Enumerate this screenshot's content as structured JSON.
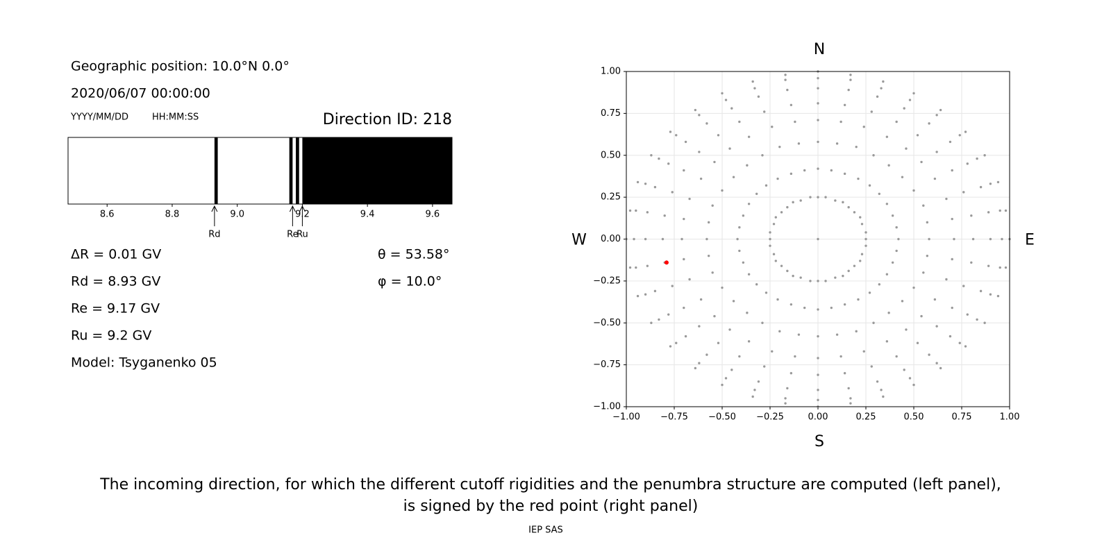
{
  "header": {
    "position": "Geographic position: 10.0°N 0.0°",
    "datetime": "2020/06/07 00:00:00",
    "date_format": "YYYY/MM/DD",
    "time_format": "HH:MM:SS"
  },
  "results": {
    "lines": [
      "ΔR = 0.01 GV",
      "Rd = 8.93 GV",
      "Re = 9.17 GV",
      "Ru = 9.2 GV",
      "Model: Tsyganenko 05"
    ],
    "angles": [
      "θ = 53.58°",
      "φ = 10.0°"
    ]
  },
  "chart_data": [
    {
      "type": "penumbra",
      "title": "Direction ID: 218",
      "xlim": [
        8.48,
        9.66
      ],
      "xticks": [
        8.6,
        8.8,
        {
          "value": 9,
          "label": "9.0"
        },
        9.2,
        9.4,
        9.6
      ],
      "color": "#000000",
      "bands": [
        [
          8.93,
          8.94
        ],
        [
          9.16,
          9.17
        ],
        [
          9.18,
          9.19
        ],
        [
          9.2,
          9.66
        ]
      ],
      "markers": [
        {
          "label": "Rd",
          "value": 8.93
        },
        {
          "label": "Re",
          "value": 9.17
        },
        {
          "label": "Ru",
          "value": 9.2
        }
      ]
    },
    {
      "type": "scatter",
      "xlim": [
        -1,
        1
      ],
      "ylim": [
        -1,
        1
      ],
      "grid": true,
      "xticks": [
        {
          "value": -1,
          "label": "−1.00"
        },
        {
          "value": -0.75,
          "label": "−0.75"
        },
        {
          "value": -0.5,
          "label": "−0.50"
        },
        {
          "value": -0.25,
          "label": "−0.25"
        },
        {
          "value": 0,
          "label": "0.00"
        },
        {
          "value": 0.25,
          "label": "0.25"
        },
        {
          "value": 0.5,
          "label": "0.50"
        },
        {
          "value": 0.75,
          "label": "0.75"
        },
        {
          "value": 1,
          "label": "1.00"
        }
      ],
      "yticks": [
        {
          "value": -1,
          "label": "−1.00"
        },
        {
          "value": -0.75,
          "label": "−0.75"
        },
        {
          "value": -0.5,
          "label": "−0.50"
        },
        {
          "value": -0.25,
          "label": "−0.25"
        },
        {
          "value": 0,
          "label": "0.00"
        },
        {
          "value": 0.25,
          "label": "0.25"
        },
        {
          "value": 0.5,
          "label": "0.50"
        },
        {
          "value": 0.75,
          "label": "0.75"
        },
        {
          "value": 1,
          "label": "1.00"
        }
      ],
      "directions": {
        "top": "N",
        "bottom": "S",
        "left": "W",
        "right": "E"
      },
      "series": [
        {
          "color": "#999999",
          "x": [
            0,
            0.25,
            0.25,
            0.23,
            0.22,
            0.19,
            0.16,
            0.13,
            0.09,
            0.04,
            0,
            -0.04,
            -0.09,
            -0.13,
            -0.16,
            -0.19,
            -0.22,
            -0.23,
            -0.25,
            -0.25,
            -0.25,
            -0.23,
            -0.22,
            -0.19,
            -0.16,
            -0.13,
            -0.09,
            -0.04,
            0,
            0.04,
            0.09,
            0.13,
            0.16,
            0.19,
            0.22,
            0.23,
            0.25,
            0.42,
            0.41,
            0.39,
            0.36,
            0.32,
            0.27,
            0.21,
            0.14,
            0.07,
            0,
            -0.07,
            -0.14,
            -0.21,
            -0.27,
            -0.32,
            -0.36,
            -0.39,
            -0.41,
            -0.42,
            -0.41,
            -0.39,
            -0.36,
            -0.32,
            -0.27,
            -0.21,
            -0.14,
            -0.07,
            0,
            0.07,
            0.14,
            0.21,
            0.27,
            0.32,
            0.36,
            0.39,
            0.41,
            0.58,
            0.57,
            0.55,
            0.5,
            0.44,
            0.37,
            0.29,
            0.2,
            0.1,
            0,
            -0.1,
            -0.2,
            -0.29,
            -0.37,
            -0.44,
            -0.5,
            -0.55,
            -0.57,
            -0.58,
            -0.57,
            -0.55,
            -0.5,
            -0.44,
            -0.37,
            -0.29,
            -0.2,
            -0.1,
            0,
            0.1,
            0.2,
            0.29,
            0.37,
            0.44,
            0.5,
            0.55,
            0.57,
            0.71,
            0.7,
            0.67,
            0.61,
            0.54,
            0.46,
            0.36,
            0.24,
            0.12,
            0,
            -0.12,
            -0.24,
            -0.36,
            -0.46,
            -0.54,
            -0.61,
            -0.67,
            -0.7,
            -0.71,
            -0.7,
            -0.67,
            -0.61,
            -0.54,
            -0.46,
            -0.36,
            -0.24,
            -0.12,
            0,
            0.12,
            0.24,
            0.36,
            0.46,
            0.54,
            0.61,
            0.67,
            0.7,
            0.81,
            0.8,
            0.76,
            0.7,
            0.62,
            0.52,
            0.41,
            0.28,
            0.14,
            0,
            -0.14,
            -0.28,
            -0.41,
            -0.52,
            -0.62,
            -0.7,
            -0.76,
            -0.8,
            -0.81,
            -0.8,
            -0.76,
            -0.7,
            -0.62,
            -0.52,
            -0.41,
            -0.28,
            -0.14,
            0,
            0.14,
            0.28,
            0.41,
            0.52,
            0.62,
            0.7,
            0.76,
            0.8,
            0.9,
            0.89,
            0.85,
            0.78,
            0.69,
            0.58,
            0.45,
            0.31,
            0.16,
            0,
            -0.16,
            -0.31,
            -0.45,
            -0.58,
            -0.69,
            -0.78,
            -0.85,
            -0.89,
            -0.9,
            -0.89,
            -0.85,
            -0.78,
            -0.69,
            -0.58,
            -0.45,
            -0.31,
            -0.16,
            0,
            0.16,
            0.31,
            0.45,
            0.58,
            0.69,
            0.78,
            0.85,
            0.89,
            0.96,
            0.95,
            0.9,
            0.83,
            0.74,
            0.62,
            0.48,
            0.33,
            0.17,
            0,
            -0.17,
            -0.33,
            -0.48,
            -0.62,
            -0.74,
            -0.83,
            -0.9,
            -0.95,
            -0.96,
            -0.95,
            -0.9,
            -0.83,
            -0.74,
            -0.62,
            -0.48,
            -0.33,
            -0.17,
            0,
            0.17,
            0.33,
            0.48,
            0.62,
            0.74,
            0.83,
            0.9,
            0.95,
            1,
            0.98,
            0.94,
            0.87,
            0.77,
            0.64,
            0.5,
            0.34,
            0.17,
            0,
            -0.17,
            -0.34,
            -0.5,
            -0.64,
            -0.77,
            -0.87,
            -0.94,
            -0.98,
            -1,
            -0.98,
            -0.94,
            -0.87,
            -0.77,
            -0.64,
            -0.5,
            -0.34,
            -0.17,
            0,
            0.17,
            0.34,
            0.5,
            0.64,
            0.77,
            0.87,
            0.94,
            0.98
          ],
          "y": [
            0,
            0,
            0.04,
            0.09,
            0.13,
            0.16,
            0.19,
            0.22,
            0.23,
            0.25,
            0.25,
            0.25,
            0.23,
            0.22,
            0.19,
            0.16,
            0.13,
            0.09,
            0.04,
            0,
            -0.04,
            -0.09,
            -0.13,
            -0.16,
            -0.19,
            -0.22,
            -0.23,
            -0.25,
            -0.25,
            -0.25,
            -0.23,
            -0.22,
            -0.19,
            -0.16,
            -0.13,
            -0.09,
            -0.04,
            0,
            0.07,
            0.14,
            0.21,
            0.27,
            0.32,
            0.36,
            0.39,
            0.41,
            0.42,
            0.41,
            0.39,
            0.36,
            0.32,
            0.27,
            0.21,
            0.14,
            0.07,
            0,
            -0.07,
            -0.14,
            -0.21,
            -0.27,
            -0.32,
            -0.36,
            -0.39,
            -0.41,
            -0.42,
            -0.41,
            -0.39,
            -0.36,
            -0.32,
            -0.27,
            -0.21,
            -0.14,
            -0.07,
            0,
            0.1,
            0.2,
            0.29,
            0.37,
            0.44,
            0.5,
            0.55,
            0.57,
            0.58,
            0.57,
            0.55,
            0.5,
            0.44,
            0.37,
            0.29,
            0.2,
            0.1,
            0,
            -0.1,
            -0.2,
            -0.29,
            -0.37,
            -0.44,
            -0.5,
            -0.55,
            -0.57,
            -0.58,
            -0.57,
            -0.55,
            -0.5,
            -0.44,
            -0.37,
            -0.29,
            -0.2,
            -0.1,
            0,
            0.12,
            0.24,
            0.36,
            0.46,
            0.54,
            0.61,
            0.67,
            0.7,
            0.71,
            0.7,
            0.67,
            0.61,
            0.54,
            0.46,
            0.36,
            0.24,
            0.12,
            0,
            -0.12,
            -0.24,
            -0.36,
            -0.46,
            -0.54,
            -0.61,
            -0.67,
            -0.7,
            -0.71,
            -0.7,
            -0.67,
            -0.61,
            -0.54,
            -0.46,
            -0.36,
            -0.24,
            -0.12,
            0,
            0.14,
            0.28,
            0.41,
            0.52,
            0.62,
            0.7,
            0.76,
            0.8,
            0.81,
            0.8,
            0.76,
            0.7,
            0.62,
            0.52,
            0.41,
            0.28,
            0.14,
            0,
            -0.14,
            -0.28,
            -0.41,
            -0.52,
            -0.62,
            -0.7,
            -0.76,
            -0.8,
            -0.81,
            -0.8,
            -0.76,
            -0.7,
            -0.62,
            -0.52,
            -0.41,
            -0.28,
            -0.14,
            0,
            0.16,
            0.31,
            0.45,
            0.58,
            0.69,
            0.78,
            0.85,
            0.89,
            0.9,
            0.89,
            0.85,
            0.78,
            0.69,
            0.58,
            0.45,
            0.31,
            0.16,
            0,
            -0.16,
            -0.31,
            -0.45,
            -0.58,
            -0.69,
            -0.78,
            -0.85,
            -0.89,
            -0.9,
            -0.89,
            -0.85,
            -0.78,
            -0.69,
            -0.58,
            -0.45,
            -0.31,
            -0.16,
            0,
            0.17,
            0.33,
            0.48,
            0.62,
            0.74,
            0.83,
            0.9,
            0.95,
            0.96,
            0.95,
            0.9,
            0.83,
            0.74,
            0.62,
            0.48,
            0.33,
            0.17,
            0,
            -0.17,
            -0.33,
            -0.48,
            -0.62,
            -0.74,
            -0.83,
            -0.9,
            -0.95,
            -0.96,
            -0.95,
            -0.9,
            -0.83,
            -0.74,
            -0.62,
            -0.48,
            -0.33,
            -0.17,
            0,
            0.17,
            0.34,
            0.5,
            0.64,
            0.77,
            0.87,
            0.94,
            0.98,
            1,
            0.98,
            0.94,
            0.87,
            0.77,
            0.64,
            0.5,
            0.34,
            0.17,
            0,
            -0.17,
            -0.34,
            -0.5,
            -0.64,
            -0.77,
            -0.87,
            -0.94,
            -0.98,
            -1,
            -0.98,
            -0.94,
            -0.87,
            -0.77,
            -0.64,
            -0.5,
            -0.34,
            -0.17
          ]
        },
        {
          "color": "#ff0000",
          "x": [
            -0.79
          ],
          "y": [
            -0.14
          ]
        }
      ]
    }
  ],
  "caption": [
    "The incoming direction, for which the different cutoff rigidities and the penumbra structure are computed (left panel),",
    "is signed by the red point (right panel)"
  ],
  "footer": "IEP SAS"
}
